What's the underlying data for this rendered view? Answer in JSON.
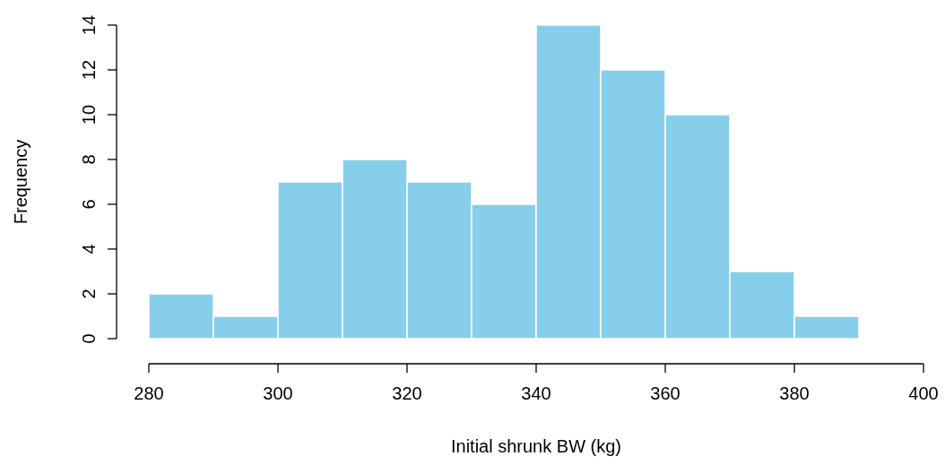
{
  "chart_data": {
    "type": "histogram",
    "xlabel": "Initial shrunk BW (kg)",
    "ylabel": "Frequency",
    "bins": [
      280,
      290,
      300,
      310,
      320,
      330,
      340,
      350,
      360,
      370,
      380,
      390
    ],
    "values": [
      2,
      1,
      7,
      8,
      7,
      6,
      14,
      12,
      10,
      3,
      1
    ],
    "color": "#87ceeb",
    "xlim": [
      280,
      400
    ],
    "xticks": [
      280,
      300,
      320,
      340,
      360,
      380,
      400
    ],
    "ylim": [
      0,
      14
    ],
    "yticks": [
      0,
      2,
      4,
      6,
      8,
      10,
      12,
      14
    ],
    "grid": false
  }
}
